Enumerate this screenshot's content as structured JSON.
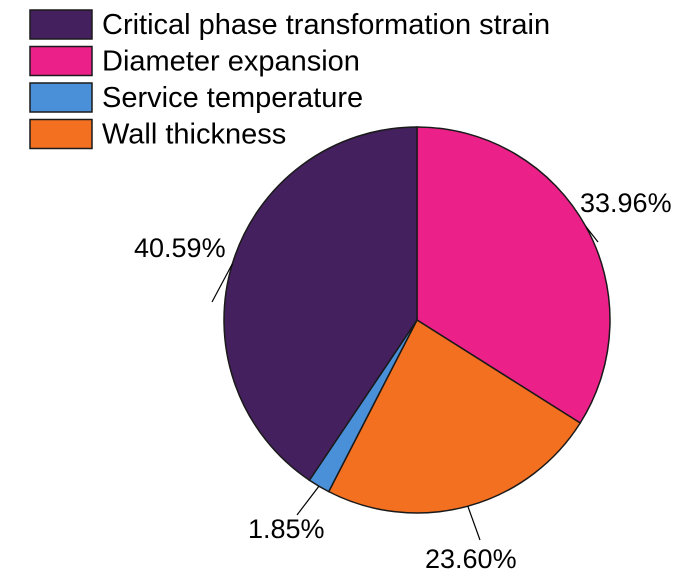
{
  "chart_data": {
    "type": "pie",
    "title": "",
    "legend_position": "top-left",
    "slices": [
      {
        "name": "Diameter expansion",
        "value": 33.96,
        "label": "33.96%",
        "color": "#ec2089"
      },
      {
        "name": "Wall thickness",
        "value": 23.6,
        "label": "23.60%",
        "color": "#f37021"
      },
      {
        "name": "Service temperature",
        "value": 1.85,
        "label": "1.85%",
        "color": "#4a90d9"
      },
      {
        "name": "Critical phase transformation strain",
        "value": 40.59,
        "label": "40.59%",
        "color": "#44205e"
      }
    ],
    "legend": [
      {
        "name": "Critical phase transformation strain",
        "color": "#44205e"
      },
      {
        "name": "Diameter expansion",
        "color": "#ec2089"
      },
      {
        "name": "Service temperature",
        "color": "#4a90d9"
      },
      {
        "name": "Wall thickness",
        "color": "#f37021"
      }
    ]
  }
}
